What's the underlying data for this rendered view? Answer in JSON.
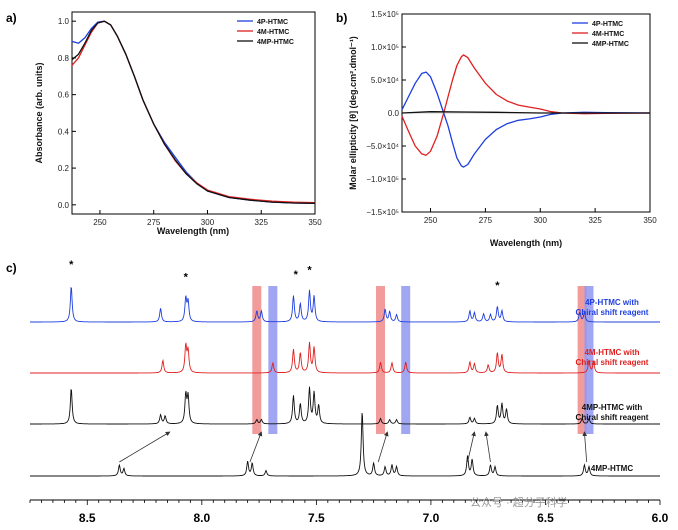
{
  "panels": {
    "a": {
      "label": "a)",
      "chart_data": {
        "type": "line",
        "xlabel": "Wavelength (nm)",
        "ylabel": "Absorbance (arb. units)",
        "xlim": [
          237,
          350
        ],
        "ylim": [
          -0.05,
          1.05
        ],
        "xticks": [
          250,
          275,
          300,
          325,
          350
        ],
        "yticks": [
          0.0,
          0.2,
          0.4,
          0.6,
          0.8,
          1.0
        ],
        "ytick_labels": [
          "0.0",
          "0.2",
          "0.4",
          "0.6",
          "0.8",
          "1.0"
        ],
        "legend_position": "top-right",
        "series": [
          {
            "name": "4P-HTMC",
            "color": "#1f3fe0",
            "x": [
              237,
              240,
              243,
              246,
              249,
              252,
              255,
              258,
              262,
              266,
              270,
              275,
              280,
              285,
              290,
              295,
              300,
              310,
              320,
              330,
              340,
              350
            ],
            "y": [
              0.89,
              0.88,
              0.91,
              0.96,
              0.995,
              1.0,
              0.98,
              0.92,
              0.82,
              0.7,
              0.57,
              0.44,
              0.34,
              0.26,
              0.18,
              0.12,
              0.075,
              0.04,
              0.025,
              0.015,
              0.01,
              0.008
            ]
          },
          {
            "name": "4M-HTMC",
            "color": "#e02020",
            "x": [
              237,
              240,
              243,
              246,
              249,
              252,
              255,
              258,
              262,
              266,
              270,
              275,
              280,
              285,
              290,
              295,
              300,
              310,
              320,
              330,
              340,
              350
            ],
            "y": [
              0.76,
              0.8,
              0.87,
              0.94,
              0.99,
              1.0,
              0.98,
              0.92,
              0.82,
              0.7,
              0.57,
              0.44,
              0.33,
              0.24,
              0.17,
              0.12,
              0.08,
              0.045,
              0.03,
              0.02,
              0.015,
              0.012
            ]
          },
          {
            "name": "4MP-HTMC",
            "color": "#111111",
            "x": [
              237,
              240,
              243,
              246,
              249,
              252,
              255,
              258,
              262,
              266,
              270,
              275,
              280,
              285,
              290,
              295,
              300,
              310,
              320,
              330,
              340,
              350
            ],
            "y": [
              0.79,
              0.82,
              0.88,
              0.95,
              0.99,
              1.0,
              0.98,
              0.92,
              0.82,
              0.7,
              0.57,
              0.44,
              0.33,
              0.245,
              0.17,
              0.115,
              0.075,
              0.04,
              0.025,
              0.015,
              0.01,
              0.008
            ]
          }
        ]
      }
    },
    "b": {
      "label": "b)",
      "chart_data": {
        "type": "line",
        "xlabel": "Wavelength (nm)",
        "ylabel": "Molar ellipticity [θ] (deg.cm².dmol⁻¹)",
        "xlim": [
          237,
          350
        ],
        "ylim": [
          -150000,
          150000
        ],
        "xticks": [
          250,
          275,
          300,
          325,
          350
        ],
        "yticks": [
          150000,
          100000,
          50000,
          0,
          -50000,
          -100000,
          -150000
        ],
        "ytick_labels": [
          "1.5×10⁵",
          "1.0×10⁵",
          "5.0×10⁴",
          "0.0",
          "−5.0×10⁴",
          "−1.0×10⁵",
          "−1.5×10⁵"
        ],
        "legend_position": "top-right",
        "series": [
          {
            "name": "4P-HTMC",
            "color": "#1f3fe0",
            "x": [
              237,
              240,
              243,
              246,
              248,
              250,
              253,
              256,
              258,
              260,
              262,
              264,
              265,
              267,
              270,
              275,
              280,
              285,
              290,
              295,
              300,
              305,
              310,
              320,
              330,
              350
            ],
            "y": [
              5000,
              25000,
              45000,
              60000,
              62000,
              55000,
              30000,
              0,
              -20000,
              -45000,
              -68000,
              -80000,
              -82000,
              -78000,
              -62000,
              -40000,
              -25000,
              -16000,
              -11000,
              -9000,
              -6000,
              -2000,
              0,
              1000,
              500,
              0
            ]
          },
          {
            "name": "4M-HTMC",
            "color": "#e02020",
            "x": [
              237,
              240,
              243,
              246,
              248,
              250,
              253,
              256,
              258,
              260,
              262,
              264,
              265,
              267,
              270,
              275,
              280,
              285,
              290,
              295,
              300,
              305,
              310,
              320,
              330,
              350
            ],
            "y": [
              -5000,
              -28000,
              -50000,
              -62000,
              -64000,
              -58000,
              -35000,
              0,
              25000,
              50000,
              72000,
              85000,
              88000,
              84000,
              68000,
              45000,
              28000,
              18000,
              12000,
              9000,
              6000,
              2000,
              0,
              -1000,
              -500,
              0
            ]
          },
          {
            "name": "4MP-HTMC",
            "color": "#111111",
            "x": [
              237,
              250,
              265,
              280,
              300,
              320,
              350
            ],
            "y": [
              0,
              2000,
              1500,
              1000,
              0,
              0,
              0
            ]
          }
        ]
      }
    },
    "c": {
      "label": "c)",
      "chart_data": {
        "type": "line",
        "xlabel": "",
        "xlim": [
          8.75,
          6.0
        ],
        "xticks": [
          8.5,
          8.0,
          7.5,
          7.0,
          6.5,
          6.0
        ],
        "xtick_labels": [
          "8.5",
          "8.0",
          "7.5",
          "7.0",
          "6.5",
          "6.0"
        ],
        "star_positions_ppm": [
          8.57,
          8.07,
          7.59,
          7.53,
          6.71
        ],
        "highlight_bands_ppm": [
          {
            "center": 7.76,
            "color": "#f08a8a"
          },
          {
            "center": 7.69,
            "color": "#8f96ee"
          },
          {
            "center": 7.22,
            "color": "#f08a8a"
          },
          {
            "center": 7.11,
            "color": "#8f96ee"
          },
          {
            "center": 6.34,
            "color": "#f08a8a"
          },
          {
            "center": 6.31,
            "color": "#8f96ee"
          }
        ],
        "arrows_ppm": [
          {
            "from": 8.36,
            "to": 8.14
          },
          {
            "from": 7.79,
            "to": 7.74
          },
          {
            "from": 7.23,
            "to": 7.19
          },
          {
            "from": 6.84,
            "to": 6.81
          },
          {
            "from": 6.74,
            "to": 6.76
          },
          {
            "from": 6.32,
            "to": 6.33
          }
        ],
        "series": [
          {
            "name": "4P-HTMC with Chiral shift reagent",
            "color": "#1f3fe0",
            "label_lines": [
              "4P-HTMC with",
              "Chiral shift reagent"
            ],
            "peaks": [
              [
                8.57,
                1.0
              ],
              [
                8.18,
                0.38
              ],
              [
                8.07,
                0.65
              ],
              [
                8.06,
                0.55
              ],
              [
                7.76,
                0.3
              ],
              [
                7.74,
                0.3
              ],
              [
                7.6,
                0.72
              ],
              [
                7.57,
                0.5
              ],
              [
                7.53,
                0.85
              ],
              [
                7.51,
                0.7
              ],
              [
                7.2,
                0.35
              ],
              [
                7.18,
                0.28
              ],
              [
                7.15,
                0.2
              ],
              [
                6.83,
                0.3
              ],
              [
                6.81,
                0.25
              ],
              [
                6.77,
                0.22
              ],
              [
                6.74,
                0.2
              ],
              [
                6.71,
                0.42
              ],
              [
                6.69,
                0.3
              ],
              [
                6.35,
                0.28
              ],
              [
                6.33,
                0.26
              ]
            ]
          },
          {
            "name": "4M-HTMC with Chiral shift reagent",
            "color": "#e02020",
            "label_lines": [
              "4M-HTMC with",
              "Chiral shift reagent"
            ],
            "peaks": [
              [
                8.17,
                0.35
              ],
              [
                8.07,
                0.75
              ],
              [
                8.06,
                0.6
              ],
              [
                7.69,
                0.28
              ],
              [
                7.6,
                0.65
              ],
              [
                7.57,
                0.55
              ],
              [
                7.53,
                0.82
              ],
              [
                7.51,
                0.7
              ],
              [
                7.22,
                0.3
              ],
              [
                7.17,
                0.28
              ],
              [
                7.11,
                0.3
              ],
              [
                6.83,
                0.3
              ],
              [
                6.81,
                0.25
              ],
              [
                6.75,
                0.22
              ],
              [
                6.71,
                0.55
              ],
              [
                6.69,
                0.5
              ],
              [
                6.31,
                0.35
              ],
              [
                6.29,
                0.3
              ]
            ]
          },
          {
            "name": "4MP-HTMC with Chiral shift reagent",
            "color": "#111111",
            "label_lines": [
              "4MP-HTMC with",
              "Chiral shift reagent"
            ],
            "peaks": [
              [
                8.57,
                1.0
              ],
              [
                8.18,
                0.25
              ],
              [
                8.16,
                0.22
              ],
              [
                8.07,
                0.8
              ],
              [
                8.06,
                0.75
              ],
              [
                7.76,
                0.12
              ],
              [
                7.74,
                0.12
              ],
              [
                7.6,
                0.78
              ],
              [
                7.57,
                0.55
              ],
              [
                7.53,
                0.98
              ],
              [
                7.51,
                0.85
              ],
              [
                7.49,
                0.5
              ],
              [
                7.22,
                0.15
              ],
              [
                7.18,
                0.12
              ],
              [
                7.15,
                0.12
              ],
              [
                6.83,
                0.18
              ],
              [
                6.81,
                0.15
              ],
              [
                6.71,
                0.5
              ],
              [
                6.69,
                0.55
              ],
              [
                6.67,
                0.4
              ],
              [
                6.34,
                0.15
              ],
              [
                6.31,
                0.15
              ]
            ]
          },
          {
            "name": "4MP-HTMC",
            "color": "#111111",
            "label_lines": [
              "4MP-HTMC"
            ],
            "peaks": [
              [
                8.36,
                0.3
              ],
              [
                8.34,
                0.2
              ],
              [
                7.8,
                0.4
              ],
              [
                7.78,
                0.35
              ],
              [
                7.72,
                0.15
              ],
              [
                7.3,
                1.8
              ],
              [
                7.25,
                0.35
              ],
              [
                7.2,
                0.25
              ],
              [
                7.17,
                0.3
              ],
              [
                7.15,
                0.25
              ],
              [
                6.84,
                0.55
              ],
              [
                6.82,
                0.45
              ],
              [
                6.74,
                0.3
              ],
              [
                6.72,
                0.25
              ],
              [
                6.33,
                0.3
              ],
              [
                6.31,
                0.25
              ]
            ]
          }
        ]
      }
    }
  },
  "watermark": "公众号 · 超分子科学"
}
